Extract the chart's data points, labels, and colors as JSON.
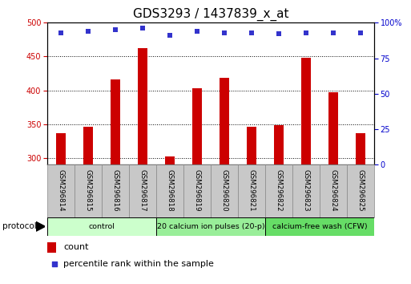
{
  "title": "GDS3293 / 1437839_x_at",
  "categories": [
    "GSM296814",
    "GSM296815",
    "GSM296816",
    "GSM296817",
    "GSM296818",
    "GSM296819",
    "GSM296820",
    "GSM296821",
    "GSM296822",
    "GSM296823",
    "GSM296824",
    "GSM296825"
  ],
  "counts": [
    337,
    346,
    416,
    462,
    302,
    403,
    418,
    346,
    348,
    448,
    397,
    337
  ],
  "percentile_ranks": [
    93,
    94,
    95,
    96,
    91,
    94,
    93,
    93,
    92,
    93,
    93,
    93
  ],
  "ylim_left": [
    290,
    500
  ],
  "ylim_right": [
    0,
    100
  ],
  "yticks_left": [
    300,
    350,
    400,
    450,
    500
  ],
  "yticks_right": [
    0,
    25,
    50,
    75,
    100
  ],
  "bar_color": "#cc0000",
  "dot_color": "#3333cc",
  "grid_color": "#000000",
  "groups": [
    {
      "label": "control",
      "start": 0,
      "end": 3,
      "color": "#ccffcc"
    },
    {
      "label": "20 calcium ion pulses (20-p)",
      "start": 4,
      "end": 7,
      "color": "#99ee99"
    },
    {
      "label": "calcium-free wash (CFW)",
      "start": 8,
      "end": 11,
      "color": "#66dd66"
    }
  ],
  "left_tick_color": "#cc0000",
  "right_tick_color": "#0000cc",
  "title_fontsize": 11,
  "tick_label_fontsize": 7,
  "legend_fontsize": 8,
  "bar_width": 0.35,
  "label_box_color": "#c8c8c8",
  "label_box_edge": "#888888"
}
